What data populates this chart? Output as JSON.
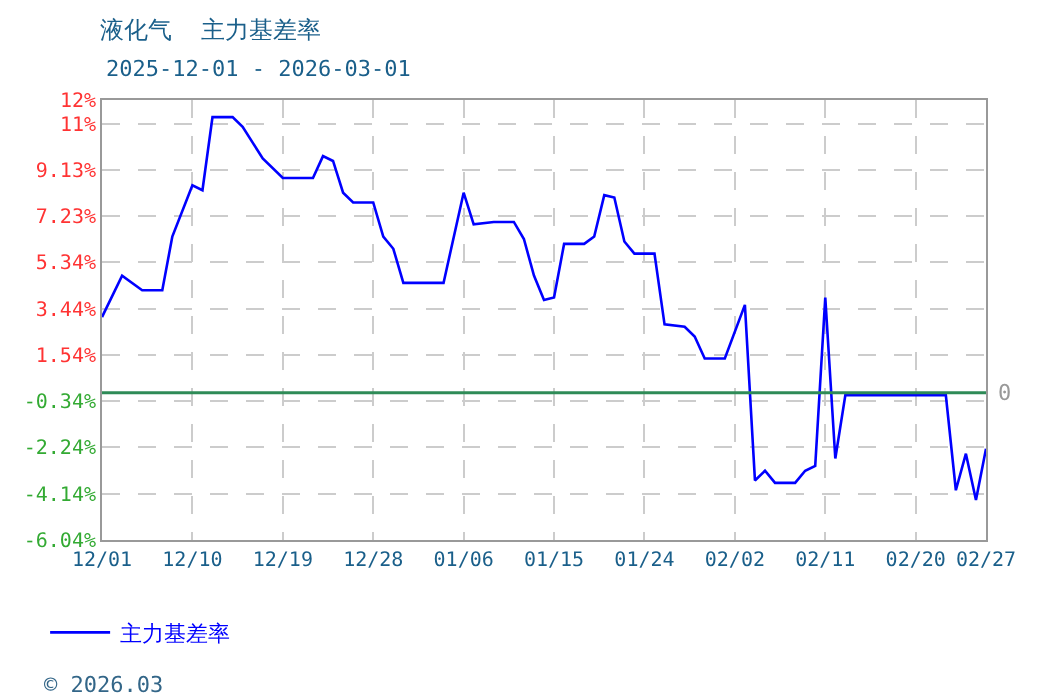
{
  "chart_data": {
    "type": "line",
    "title": "液化气  主力基差率",
    "subtitle": "2025-12-01 - 2026-03-01",
    "x": [
      "2025-12-01",
      "2025-12-03",
      "2025-12-05",
      "2025-12-07",
      "2025-12-08",
      "2025-12-10",
      "2025-12-11",
      "2025-12-12",
      "2025-12-14",
      "2025-12-15",
      "2025-12-17",
      "2025-12-19",
      "2025-12-22",
      "2025-12-23",
      "2025-12-24",
      "2025-12-25",
      "2025-12-26",
      "2025-12-28",
      "2025-12-29",
      "2025-12-30",
      "2025-12-31",
      "2026-01-04",
      "2026-01-06",
      "2026-01-07",
      "2026-01-09",
      "2026-01-11",
      "2026-01-12",
      "2026-01-13",
      "2026-01-14",
      "2026-01-15",
      "2026-01-16",
      "2026-01-18",
      "2026-01-19",
      "2026-01-20",
      "2026-01-21",
      "2026-01-22",
      "2026-01-23",
      "2026-01-25",
      "2026-01-26",
      "2026-01-28",
      "2026-01-29",
      "2026-01-30",
      "2026-02-01",
      "2026-02-03",
      "2026-02-04",
      "2026-02-05",
      "2026-02-06",
      "2026-02-08",
      "2026-02-09",
      "2026-02-10",
      "2026-02-11",
      "2026-02-12",
      "2026-02-13",
      "2026-02-23",
      "2026-02-24",
      "2026-02-25",
      "2026-02-26",
      "2026-02-27"
    ],
    "series": [
      {
        "name": "主力基差率",
        "color": "#0000ff",
        "values": [
          3.1,
          4.8,
          4.2,
          4.2,
          6.4,
          8.5,
          8.3,
          11.3,
          11.3,
          10.9,
          9.6,
          8.8,
          8.8,
          9.7,
          9.5,
          8.2,
          7.8,
          7.8,
          6.4,
          5.9,
          4.5,
          4.5,
          8.2,
          6.9,
          7.0,
          7.0,
          6.3,
          4.8,
          3.8,
          3.9,
          6.1,
          6.1,
          6.4,
          8.1,
          8.0,
          6.2,
          5.7,
          5.7,
          2.8,
          2.7,
          2.3,
          1.4,
          1.4,
          3.6,
          -3.6,
          -3.2,
          -3.7,
          -3.7,
          -3.2,
          -3.0,
          3.9,
          -2.7,
          -0.1,
          -0.1,
          -4.0,
          -2.5,
          -4.4,
          -2.3
        ]
      }
    ],
    "ylim": [
      -6.04,
      12
    ],
    "yticks": [
      {
        "value": -6.04,
        "label": "-6.04%"
      },
      {
        "value": -4.14,
        "label": "-4.14%"
      },
      {
        "value": -2.24,
        "label": "-2.24%"
      },
      {
        "value": -0.34,
        "label": "-0.34%"
      },
      {
        "value": 1.54,
        "label": "1.54%"
      },
      {
        "value": 3.44,
        "label": "3.44%"
      },
      {
        "value": 5.34,
        "label": "5.34%"
      },
      {
        "value": 7.23,
        "label": "7.23%"
      },
      {
        "value": 9.13,
        "label": "9.13%"
      },
      {
        "value": 11,
        "label": "11%"
      },
      {
        "value": 12,
        "label": "12%"
      }
    ],
    "xlim": [
      "2025-12-01",
      "2026-02-27"
    ],
    "xticks": [
      {
        "value": "2025-12-01",
        "label": "12/01"
      },
      {
        "value": "2025-12-10",
        "label": "12/10"
      },
      {
        "value": "2025-12-19",
        "label": "12/19"
      },
      {
        "value": "2025-12-28",
        "label": "12/28"
      },
      {
        "value": "2026-01-06",
        "label": "01/06"
      },
      {
        "value": "2026-01-15",
        "label": "01/15"
      },
      {
        "value": "2026-01-24",
        "label": "01/24"
      },
      {
        "value": "2026-02-02",
        "label": "02/02"
      },
      {
        "value": "2026-02-11",
        "label": "02/11"
      },
      {
        "value": "2026-02-20",
        "label": "02/20"
      },
      {
        "value": "2026-02-27",
        "label": "02/27"
      }
    ],
    "ref_lines": [
      {
        "axis": "y",
        "value": 0,
        "label": "0",
        "color": "#2e8b57",
        "line_style": "solid"
      }
    ],
    "annotations": [
      "© 2026.03"
    ],
    "grid": true,
    "legend": "bottom left",
    "marker": "none",
    "line_style": "solid"
  }
}
